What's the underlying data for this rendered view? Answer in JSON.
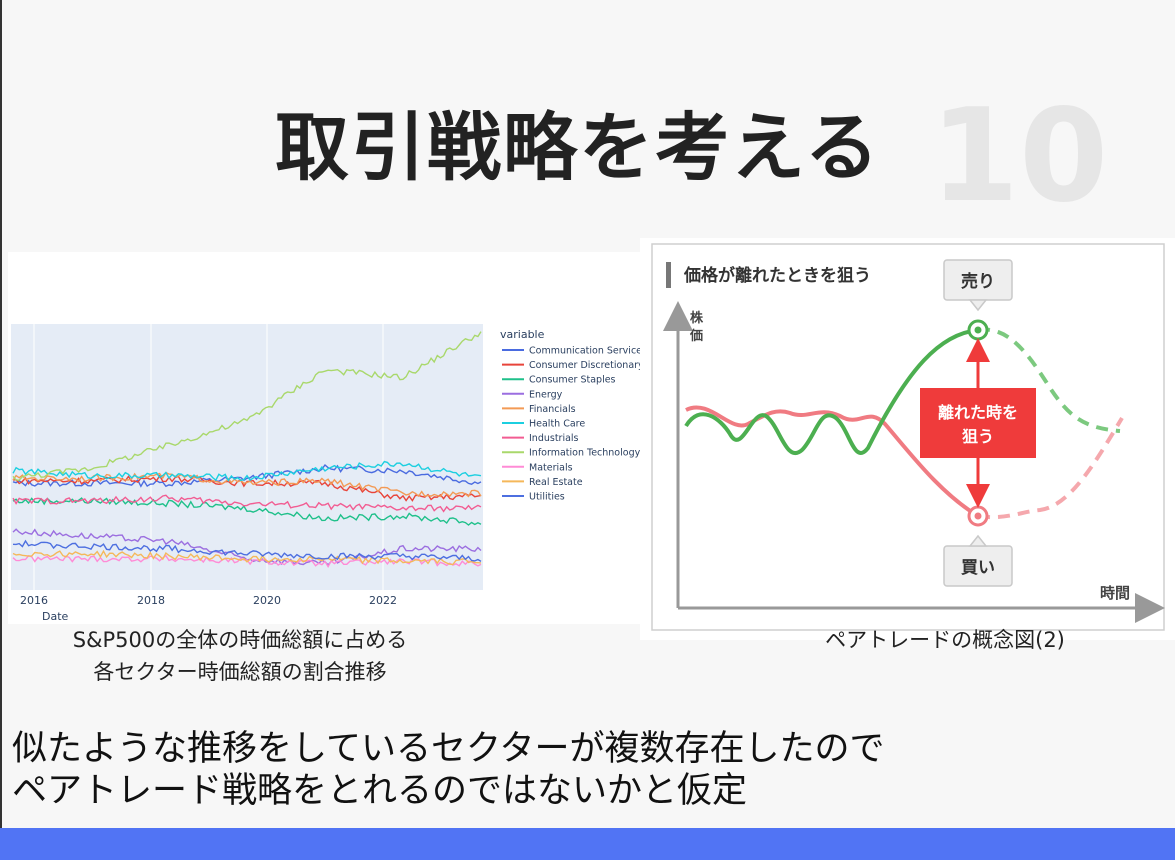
{
  "slide": {
    "title": "取引戦略を考える",
    "page_number": "10",
    "caption_left_line1": "S&P500の全体の時価総額に占める",
    "caption_left_line2": "各セクター時価総額の割合推移",
    "caption_right": "ペアトレードの概念図(2)",
    "body_line1": "似たような推移をしているセクターが複数存在したので",
    "body_line2": "ペアトレード戦略をとれるのではないかと仮定",
    "accent_color": "#5174f4"
  },
  "chart_data": {
    "type": "line",
    "xlabel": "Date",
    "ylabel": "",
    "x_ticks": [
      "2016",
      "2018",
      "2020",
      "2022"
    ],
    "legend_title": "variable",
    "legend_position": "right",
    "grid": true,
    "series": [
      {
        "name": "Communication Services",
        "color": "#4a6be0",
        "values": [
          0.4,
          0.4,
          0.4,
          0.42,
          0.46,
          0.45,
          0.4
        ]
      },
      {
        "name": "Consumer Discretionary",
        "color": "#e8443a",
        "values": [
          0.41,
          0.41,
          0.42,
          0.4,
          0.4,
          0.34,
          0.35
        ]
      },
      {
        "name": "Consumer Staples",
        "color": "#1fc08a",
        "values": [
          0.33,
          0.33,
          0.32,
          0.3,
          0.26,
          0.27,
          0.24
        ]
      },
      {
        "name": "Energy",
        "color": "#9b6ee0",
        "values": [
          0.21,
          0.19,
          0.17,
          0.1,
          0.08,
          0.14,
          0.14
        ]
      },
      {
        "name": "Financials",
        "color": "#f39a55",
        "values": [
          0.42,
          0.42,
          0.43,
          0.4,
          0.41,
          0.36,
          0.36
        ]
      },
      {
        "name": "Health Care",
        "color": "#1ccfe0",
        "values": [
          0.45,
          0.43,
          0.43,
          0.42,
          0.46,
          0.48,
          0.42
        ]
      },
      {
        "name": "Industrials",
        "color": "#f25c92",
        "values": [
          0.33,
          0.33,
          0.34,
          0.32,
          0.31,
          0.3,
          0.3
        ]
      },
      {
        "name": "Information Technology",
        "color": "#a9d86b",
        "values": [
          0.42,
          0.46,
          0.55,
          0.65,
          0.85,
          0.82,
          1.0
        ]
      },
      {
        "name": "Materials",
        "color": "#ff8bd6",
        "values": [
          0.1,
          0.1,
          0.1,
          0.09,
          0.08,
          0.09,
          0.08
        ]
      },
      {
        "name": "Real Estate",
        "color": "#f5b85a",
        "values": [
          0.12,
          0.12,
          0.11,
          0.1,
          0.1,
          0.09,
          0.09
        ]
      },
      {
        "name": "Utilities",
        "color": "#4d6fe0",
        "values": [
          0.16,
          0.15,
          0.14,
          0.12,
          0.11,
          0.11,
          0.1
        ]
      }
    ]
  },
  "diagram": {
    "header": "価格が離れたときを狙う",
    "y_axis_label_1": "株",
    "y_axis_label_2": "価",
    "x_axis_label": "時間",
    "sell_label": "売り",
    "buy_label": "買い",
    "target_line1": "離れた時を",
    "target_line2": "狙う",
    "green_color": "#4caf50",
    "pink_color": "#f07b82",
    "red_color": "#ef3b3b"
  }
}
